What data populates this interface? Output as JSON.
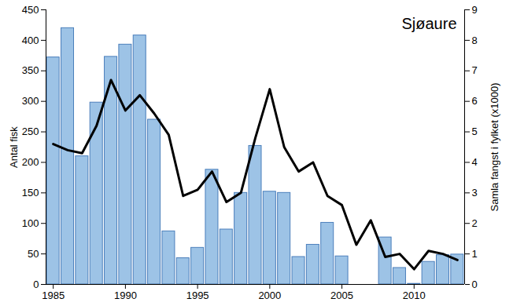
{
  "chart_data": {
    "type": "bar",
    "title": "Sjøaure",
    "x": [
      1985,
      1986,
      1987,
      1988,
      1989,
      1990,
      1991,
      1992,
      1993,
      1994,
      1995,
      1996,
      1997,
      1998,
      1999,
      2000,
      2001,
      2002,
      2003,
      2004,
      2005,
      2006,
      2007,
      2008,
      2009,
      2010,
      2011,
      2012,
      2013
    ],
    "xlim": [
      1984.5,
      2013.5
    ],
    "xticks": [
      1985,
      1990,
      1995,
      2000,
      2005,
      2010
    ],
    "ylabel": "Antal fisk",
    "ylim": [
      0,
      450
    ],
    "yticks": [
      0,
      50,
      100,
      150,
      200,
      250,
      300,
      350,
      400,
      450
    ],
    "y2label": "Samla fangst i fylket (x1000)",
    "y2lim": [
      0,
      9
    ],
    "y2ticks": [
      0,
      1,
      2,
      3,
      4,
      5,
      6,
      7,
      8,
      9
    ],
    "series": [
      {
        "name": "Antal fisk",
        "type": "bar",
        "color": "#9dc3e6",
        "values": [
          372,
          420,
          210,
          298,
          373,
          393,
          408,
          270,
          87,
          43,
          60,
          188,
          90,
          150,
          227,
          152,
          150,
          45,
          65,
          101,
          46,
          null,
          null,
          77,
          27,
          1,
          37,
          48,
          49
        ]
      },
      {
        "name": "Samla fangst i fylket (x1000)",
        "type": "line",
        "axis": "y2",
        "color": "#000000",
        "values": [
          4.6,
          4.4,
          4.3,
          5.2,
          6.7,
          5.7,
          6.2,
          5.6,
          4.9,
          2.9,
          3.1,
          3.7,
          2.7,
          3.0,
          4.8,
          6.4,
          4.5,
          3.7,
          4.0,
          2.9,
          2.6,
          1.3,
          2.1,
          0.9,
          1.0,
          0.5,
          1.1,
          1.0,
          0.8
        ]
      }
    ]
  }
}
